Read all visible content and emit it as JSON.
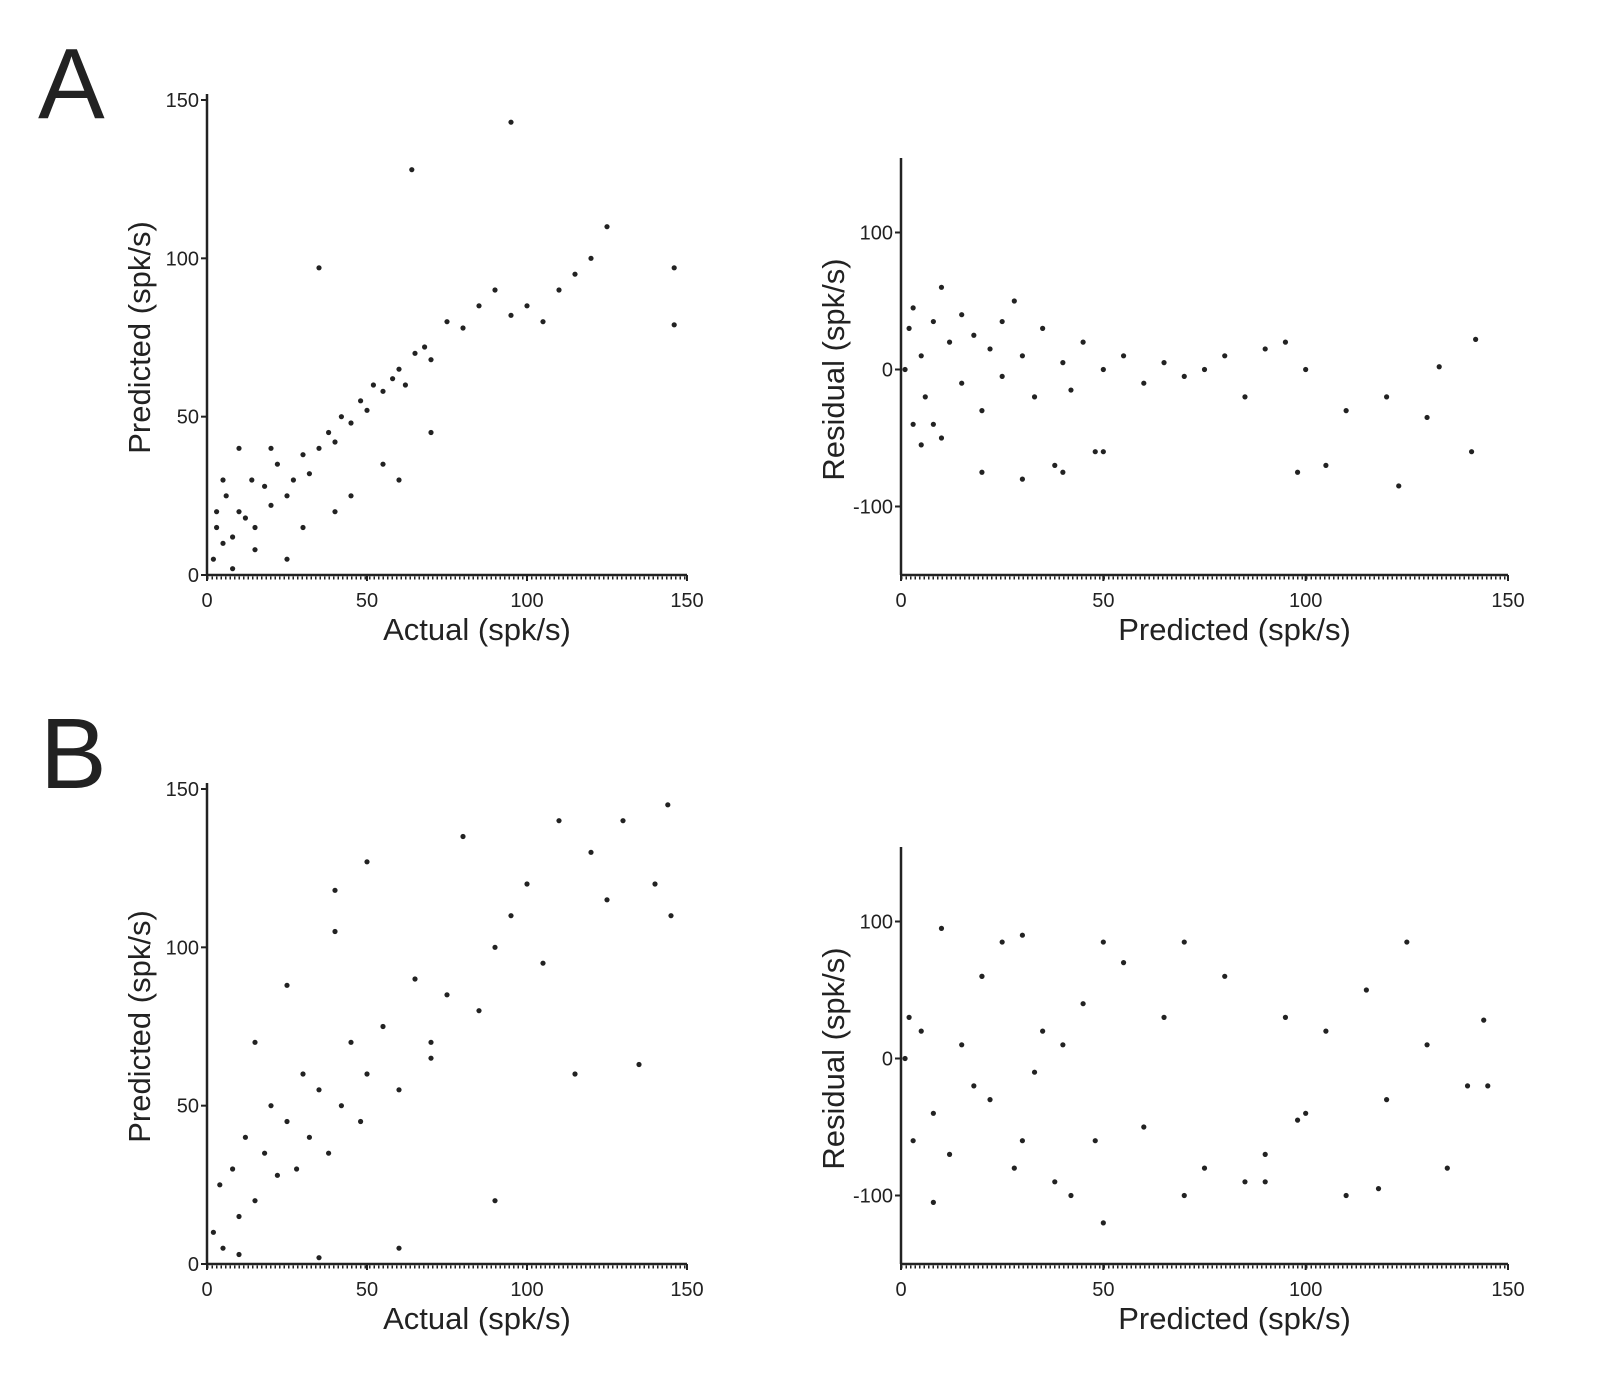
{
  "chart_data": [
    {
      "type": "scatter",
      "panel": "A",
      "x_label": "Actual (spk/s)",
      "y_label": "Predicted (spk/s)",
      "color": "#222222",
      "xlim": [
        0,
        150
      ],
      "ylim": [
        0,
        150
      ],
      "xticks": [
        0,
        50,
        100,
        150
      ],
      "yticks": [
        0,
        50,
        100,
        150
      ],
      "x": [
        2,
        3,
        5,
        6,
        8,
        10,
        12,
        14,
        15,
        18,
        20,
        22,
        25,
        27,
        30,
        32,
        35,
        38,
        40,
        42,
        45,
        48,
        50,
        52,
        55,
        58,
        60,
        62,
        65,
        68,
        70,
        75,
        80,
        85,
        90,
        95,
        100,
        105,
        110,
        115,
        120,
        125,
        146,
        146,
        64,
        95,
        35,
        10,
        5,
        15,
        25,
        40,
        55,
        70,
        30,
        20,
        45,
        60,
        3,
        8
      ],
      "y": [
        5,
        15,
        10,
        25,
        12,
        20,
        18,
        30,
        15,
        28,
        22,
        35,
        25,
        30,
        38,
        32,
        40,
        45,
        42,
        50,
        48,
        55,
        52,
        60,
        58,
        62,
        65,
        60,
        70,
        72,
        68,
        80,
        78,
        85,
        90,
        82,
        85,
        80,
        90,
        95,
        100,
        110,
        97,
        79,
        128,
        143,
        97,
        40,
        30,
        8,
        5,
        20,
        35,
        45,
        15,
        40,
        25,
        30,
        20,
        2
      ]
    },
    {
      "type": "scatter",
      "x_label": "Predicted (spk/s)",
      "y_label": "Residual (spk/s)",
      "color": "#222222",
      "xlim": [
        0,
        150
      ],
      "ylim": [
        -150,
        150
      ],
      "xticks": [
        0,
        50,
        100,
        150
      ],
      "yticks": [
        -100,
        0,
        100
      ],
      "x": [
        1,
        2,
        3,
        5,
        6,
        8,
        10,
        12,
        15,
        18,
        20,
        22,
        25,
        28,
        30,
        33,
        35,
        38,
        40,
        42,
        45,
        48,
        50,
        55,
        60,
        65,
        70,
        75,
        80,
        85,
        90,
        95,
        98,
        100,
        105,
        110,
        120,
        123,
        130,
        133,
        141,
        142,
        3,
        5,
        10,
        20,
        30,
        40,
        50,
        8,
        15,
        25
      ],
      "y": [
        0,
        30,
        -40,
        10,
        -20,
        35,
        -50,
        20,
        -10,
        25,
        -30,
        15,
        -5,
        50,
        10,
        -20,
        30,
        -70,
        5,
        -15,
        20,
        -60,
        0,
        10,
        -10,
        5,
        -5,
        0,
        10,
        -20,
        15,
        20,
        -75,
        0,
        -70,
        -30,
        -20,
        -85,
        -35,
        2,
        -60,
        22,
        45,
        -55,
        60,
        -75,
        -80,
        -75,
        -60,
        -40,
        40,
        35
      ]
    },
    {
      "type": "scatter",
      "panel": "B",
      "x_label": "Actual (spk/s)",
      "y_label": "Predicted (spk/s)",
      "color": "#222222",
      "xlim": [
        0,
        150
      ],
      "ylim": [
        0,
        150
      ],
      "xticks": [
        0,
        50,
        100,
        150
      ],
      "yticks": [
        0,
        50,
        100,
        150
      ],
      "x": [
        2,
        4,
        5,
        8,
        10,
        12,
        15,
        18,
        20,
        22,
        25,
        28,
        30,
        32,
        35,
        38,
        40,
        42,
        45,
        48,
        50,
        55,
        60,
        65,
        70,
        75,
        80,
        85,
        90,
        95,
        100,
        105,
        110,
        115,
        120,
        125,
        130,
        135,
        140,
        145,
        144,
        60,
        50,
        35,
        25,
        15,
        10,
        40,
        70,
        90
      ],
      "y": [
        10,
        25,
        5,
        30,
        15,
        40,
        20,
        35,
        50,
        28,
        45,
        30,
        60,
        40,
        55,
        35,
        118,
        50,
        70,
        45,
        60,
        75,
        55,
        90,
        70,
        85,
        135,
        80,
        100,
        110,
        120,
        95,
        140,
        60,
        130,
        115,
        140,
        63,
        120,
        110,
        145,
        5,
        127,
        2,
        88,
        70,
        3,
        105,
        65,
        20
      ]
    },
    {
      "type": "scatter",
      "x_label": "Predicted (spk/s)",
      "y_label": "Residual (spk/s)",
      "color": "#222222",
      "xlim": [
        0,
        150
      ],
      "ylim": [
        -150,
        150
      ],
      "xticks": [
        0,
        50,
        100,
        150
      ],
      "yticks": [
        -100,
        0,
        100
      ],
      "x": [
        1,
        2,
        3,
        5,
        8,
        10,
        12,
        15,
        18,
        20,
        22,
        25,
        28,
        30,
        33,
        35,
        38,
        40,
        42,
        45,
        48,
        50,
        55,
        60,
        65,
        70,
        75,
        80,
        85,
        90,
        95,
        100,
        105,
        110,
        115,
        120,
        125,
        130,
        135,
        140,
        144,
        145,
        8,
        20,
        30,
        50,
        70,
        90,
        98,
        118
      ],
      "y": [
        0,
        30,
        -60,
        20,
        -40,
        95,
        -70,
        10,
        -20,
        60,
        -30,
        85,
        -80,
        90,
        -10,
        20,
        -90,
        10,
        -100,
        40,
        -60,
        -120,
        70,
        -50,
        30,
        85,
        -80,
        60,
        -90,
        -70,
        30,
        -40,
        20,
        -100,
        50,
        -30,
        85,
        10,
        -80,
        -20,
        28,
        -20,
        -105,
        60,
        -60,
        85,
        -100,
        -90,
        -45,
        -95
      ]
    }
  ]
}
